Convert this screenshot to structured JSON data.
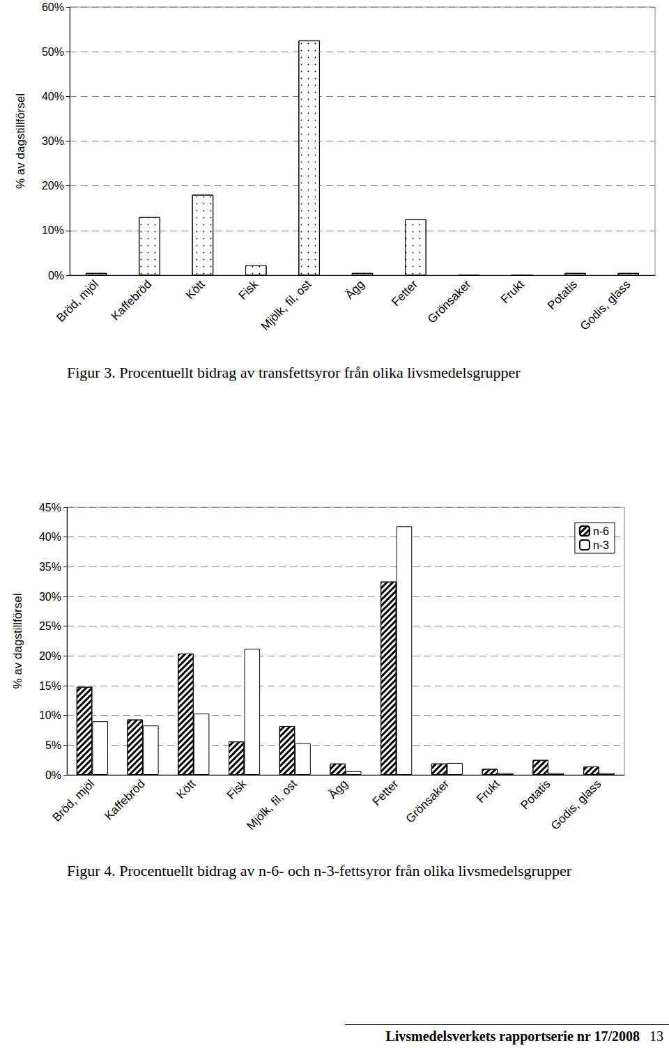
{
  "chart_data": [
    {
      "type": "bar",
      "title": "Figur 3. Procentuellt bidrag av transfettsyror från olika livsmedelsgrupper",
      "y_label": "% av dagstillförsel",
      "categories": [
        "Bröd, mjöl",
        "Kaffebröd",
        "Kött",
        "Fisk",
        "Mjölk, fil, ost",
        "Ägg",
        "Fetter",
        "Grönsaker",
        "Frukt",
        "Potatis",
        "Godis, glass"
      ],
      "values": [
        0.5,
        13,
        18,
        2.2,
        52.5,
        0.5,
        12.5,
        0,
        0,
        0.5,
        0.5
      ],
      "color": "#ffffff",
      "ylim": [
        0,
        60
      ],
      "yticks": [
        {
          "value": 0,
          "label": "0%"
        },
        {
          "value": 10,
          "label": "10%"
        },
        {
          "value": 20,
          "label": "20%"
        },
        {
          "value": 30,
          "label": "30%"
        },
        {
          "value": 40,
          "label": "40%"
        },
        {
          "value": 50,
          "label": "50%"
        },
        {
          "value": 60,
          "label": "60%"
        }
      ],
      "grid": true
    },
    {
      "type": "bar",
      "title": "Figur 4. Procentuellt bidrag av n-6- och n-3-fettsyror från olika livsmedelsgrupper",
      "y_label": "% av dagstillförsel",
      "categories": [
        "Bröd, mjöl",
        "Kaffebröd",
        "Kött",
        "Fisk",
        "Mjölk, fil, ost",
        "Ägg",
        "Fetter",
        "Grönsaker",
        "Frukt",
        "Potatis",
        "Godis, glass"
      ],
      "series": [
        {
          "name": "n-6",
          "color": "#ffffff",
          "values": [
            14.8,
            9.3,
            20.4,
            5.6,
            8.2,
            1.9,
            32.5,
            1.9,
            1.0,
            2.5,
            1.4
          ]
        },
        {
          "name": "n-3",
          "color": "#ffffff",
          "values": [
            9.0,
            8.3,
            10.3,
            21.2,
            5.3,
            0.6,
            41.8,
            2.0,
            0.3,
            0.3,
            0.3
          ]
        }
      ],
      "ylim": [
        0,
        45
      ],
      "yticks": [
        {
          "value": 0,
          "label": "0%"
        },
        {
          "value": 5,
          "label": "5%"
        },
        {
          "value": 10,
          "label": "10%"
        },
        {
          "value": 15,
          "label": "15%"
        },
        {
          "value": 20,
          "label": "20%"
        },
        {
          "value": 25,
          "label": "25%"
        },
        {
          "value": 30,
          "label": "30%"
        },
        {
          "value": 35,
          "label": "35%"
        },
        {
          "value": 40,
          "label": "40%"
        },
        {
          "value": 45,
          "label": "45%"
        }
      ],
      "grid": true,
      "legend": "top-right"
    }
  ],
  "footer": {
    "text": "Livsmedelsverkets rapportserie nr 17/2008",
    "page": "13"
  }
}
